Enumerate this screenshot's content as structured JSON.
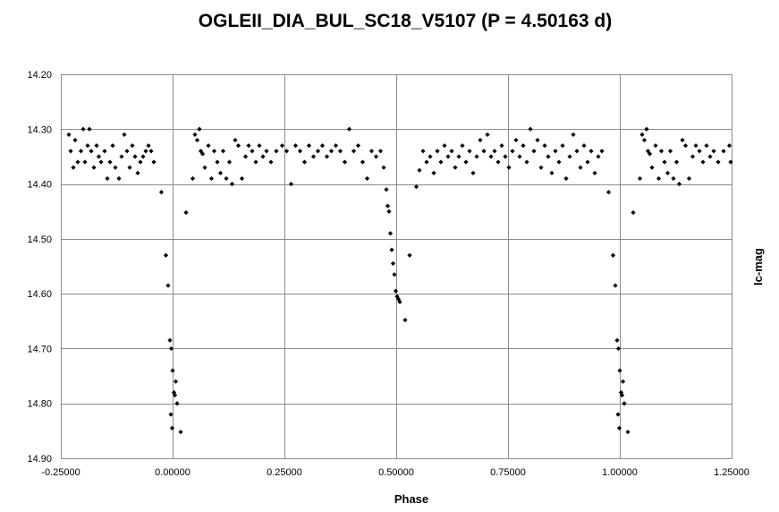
{
  "chart_data": {
    "type": "scatter",
    "title": "OGLEII_DIA_BUL_SC18_V5107 (P = 4.50163 d)",
    "xlabel": "Phase",
    "ylabel": "Ic-mag",
    "xlim": [
      -0.25,
      1.25
    ],
    "ylim": [
      14.9,
      14.2
    ],
    "y_inverted": true,
    "x_ticks": [
      "-0.25000",
      "0.00000",
      "0.25000",
      "0.50000",
      "0.75000",
      "1.00000",
      "1.25000"
    ],
    "x_tick_values": [
      -0.25,
      0.0,
      0.25,
      0.5,
      0.75,
      1.0,
      1.25
    ],
    "y_ticks": [
      "14.20",
      "14.30",
      "14.40",
      "14.50",
      "14.60",
      "14.70",
      "14.80",
      "14.90"
    ],
    "y_tick_values": [
      14.2,
      14.3,
      14.4,
      14.5,
      14.6,
      14.7,
      14.8,
      14.9
    ],
    "grid": true,
    "marker": "diamond",
    "color": "#000000",
    "series": [
      {
        "points": [
          [
            -0.232,
            14.31
          ],
          [
            -0.228,
            14.34
          ],
          [
            -0.222,
            14.37
          ],
          [
            -0.218,
            14.32
          ],
          [
            -0.212,
            14.36
          ],
          [
            -0.205,
            14.34
          ],
          [
            -0.2,
            14.3
          ],
          [
            -0.196,
            14.36
          ],
          [
            -0.19,
            14.33
          ],
          [
            -0.186,
            14.3
          ],
          [
            -0.182,
            14.34
          ],
          [
            -0.176,
            14.37
          ],
          [
            -0.17,
            14.33
          ],
          [
            -0.165,
            14.35
          ],
          [
            -0.16,
            14.36
          ],
          [
            -0.152,
            14.34
          ],
          [
            -0.146,
            14.39
          ],
          [
            -0.14,
            14.36
          ],
          [
            -0.134,
            14.33
          ],
          [
            -0.128,
            14.37
          ],
          [
            -0.12,
            14.39
          ],
          [
            -0.114,
            14.35
          ],
          [
            -0.108,
            14.31
          ],
          [
            -0.102,
            14.34
          ],
          [
            -0.096,
            14.37
          ],
          [
            -0.09,
            14.33
          ],
          [
            -0.084,
            14.35
          ],
          [
            -0.078,
            14.38
          ],
          [
            -0.072,
            14.36
          ],
          [
            -0.066,
            14.35
          ],
          [
            -0.06,
            14.34
          ],
          [
            -0.054,
            14.33
          ],
          [
            -0.048,
            14.34
          ],
          [
            -0.042,
            14.36
          ],
          [
            -0.025,
            14.415
          ],
          [
            -0.015,
            14.53
          ],
          [
            -0.01,
            14.585
          ],
          [
            -0.006,
            14.685
          ],
          [
            -0.003,
            14.7
          ],
          [
            0.0,
            14.74
          ],
          [
            0.003,
            14.78
          ],
          [
            0.005,
            14.785
          ],
          [
            0.007,
            14.76
          ],
          [
            -0.004,
            14.82
          ],
          [
            -0.001,
            14.845
          ],
          [
            0.01,
            14.8
          ],
          [
            0.018,
            14.852
          ],
          [
            0.03,
            14.452
          ],
          [
            0.045,
            14.39
          ],
          [
            0.05,
            14.31
          ],
          [
            0.055,
            14.32
          ],
          [
            0.06,
            14.3
          ],
          [
            0.063,
            14.34
          ],
          [
            0.067,
            14.345
          ],
          [
            0.072,
            14.37
          ],
          [
            0.08,
            14.33
          ],
          [
            0.087,
            14.39
          ],
          [
            0.093,
            14.34
          ],
          [
            0.1,
            14.36
          ],
          [
            0.107,
            14.38
          ],
          [
            0.113,
            14.34
          ],
          [
            0.12,
            14.39
          ],
          [
            0.127,
            14.36
          ],
          [
            0.133,
            14.4
          ],
          [
            0.14,
            14.32
          ],
          [
            0.147,
            14.33
          ],
          [
            0.155,
            14.39
          ],
          [
            0.163,
            14.35
          ],
          [
            0.17,
            14.33
          ],
          [
            0.178,
            14.34
          ],
          [
            0.186,
            14.36
          ],
          [
            0.194,
            14.33
          ],
          [
            0.202,
            14.35
          ],
          [
            0.21,
            14.34
          ],
          [
            0.22,
            14.36
          ],
          [
            0.232,
            14.34
          ],
          [
            0.245,
            14.33
          ],
          [
            0.255,
            14.34
          ],
          [
            0.265,
            14.4
          ],
          [
            0.275,
            14.33
          ],
          [
            0.285,
            14.34
          ],
          [
            0.295,
            14.36
          ],
          [
            0.305,
            14.33
          ],
          [
            0.315,
            14.35
          ],
          [
            0.325,
            14.34
          ],
          [
            0.335,
            14.33
          ],
          [
            0.345,
            14.35
          ],
          [
            0.355,
            14.34
          ],
          [
            0.365,
            14.33
          ],
          [
            0.375,
            14.34
          ],
          [
            0.385,
            14.36
          ],
          [
            0.395,
            14.3
          ],
          [
            0.405,
            14.34
          ],
          [
            0.415,
            14.33
          ],
          [
            0.425,
            14.36
          ],
          [
            0.435,
            14.39
          ],
          [
            0.445,
            14.34
          ],
          [
            0.455,
            14.35
          ],
          [
            0.465,
            14.34
          ],
          [
            0.472,
            14.37
          ],
          [
            0.478,
            14.41
          ],
          [
            0.481,
            14.44
          ],
          [
            0.484,
            14.45
          ],
          [
            0.487,
            14.49
          ],
          [
            0.49,
            14.52
          ],
          [
            0.493,
            14.545
          ],
          [
            0.496,
            14.565
          ],
          [
            0.499,
            14.595
          ],
          [
            0.502,
            14.605
          ],
          [
            0.505,
            14.61
          ],
          [
            0.508,
            14.615
          ],
          [
            0.52,
            14.648
          ],
          [
            0.53,
            14.53
          ],
          [
            0.545,
            14.405
          ],
          [
            0.552,
            14.375
          ],
          [
            0.56,
            14.34
          ],
          [
            0.568,
            14.36
          ],
          [
            0.576,
            14.35
          ],
          [
            0.584,
            14.38
          ],
          [
            0.592,
            14.34
          ],
          [
            0.6,
            14.36
          ],
          [
            0.608,
            14.33
          ],
          [
            0.616,
            14.35
          ],
          [
            0.624,
            14.34
          ],
          [
            0.632,
            14.37
          ],
          [
            0.64,
            14.35
          ],
          [
            0.648,
            14.33
          ],
          [
            0.656,
            14.36
          ],
          [
            0.664,
            14.34
          ],
          [
            0.672,
            14.38
          ],
          [
            0.68,
            14.35
          ],
          [
            0.688,
            14.32
          ],
          [
            0.696,
            14.34
          ],
          [
            0.704,
            14.31
          ],
          [
            0.712,
            14.35
          ],
          [
            0.72,
            14.34
          ],
          [
            0.728,
            14.36
          ],
          [
            0.736,
            14.33
          ],
          [
            0.744,
            14.35
          ],
          [
            0.752,
            14.37
          ],
          [
            0.76,
            14.34
          ],
          [
            0.768,
            14.32
          ],
          [
            0.776,
            14.35
          ],
          [
            0.784,
            14.33
          ],
          [
            0.792,
            14.36
          ],
          [
            0.8,
            14.3
          ],
          [
            0.808,
            14.34
          ],
          [
            0.816,
            14.32
          ],
          [
            0.824,
            14.37
          ],
          [
            0.832,
            14.33
          ],
          [
            0.84,
            14.35
          ],
          [
            0.848,
            14.38
          ],
          [
            0.856,
            14.34
          ],
          [
            0.864,
            14.36
          ],
          [
            0.872,
            14.33
          ],
          [
            0.88,
            14.39
          ],
          [
            0.888,
            14.35
          ],
          [
            0.896,
            14.31
          ],
          [
            0.904,
            14.34
          ],
          [
            0.912,
            14.37
          ],
          [
            0.92,
            14.33
          ],
          [
            0.928,
            14.36
          ],
          [
            0.936,
            14.34
          ],
          [
            0.944,
            14.38
          ],
          [
            0.952,
            14.35
          ],
          [
            0.96,
            14.34
          ],
          [
            0.975,
            14.415
          ],
          [
            0.985,
            14.53
          ],
          [
            0.99,
            14.585
          ],
          [
            0.994,
            14.685
          ],
          [
            0.997,
            14.7
          ],
          [
            1.0,
            14.74
          ],
          [
            1.003,
            14.78
          ],
          [
            1.005,
            14.785
          ],
          [
            1.007,
            14.76
          ],
          [
            0.996,
            14.82
          ],
          [
            0.999,
            14.845
          ],
          [
            1.01,
            14.8
          ],
          [
            1.018,
            14.852
          ],
          [
            1.03,
            14.452
          ],
          [
            1.045,
            14.39
          ],
          [
            1.05,
            14.31
          ],
          [
            1.055,
            14.32
          ],
          [
            1.06,
            14.3
          ],
          [
            1.063,
            14.34
          ],
          [
            1.067,
            14.345
          ],
          [
            1.072,
            14.37
          ],
          [
            1.08,
            14.33
          ],
          [
            1.087,
            14.39
          ],
          [
            1.093,
            14.34
          ],
          [
            1.1,
            14.36
          ],
          [
            1.107,
            14.38
          ],
          [
            1.113,
            14.34
          ],
          [
            1.12,
            14.39
          ],
          [
            1.127,
            14.36
          ],
          [
            1.133,
            14.4
          ],
          [
            1.14,
            14.32
          ],
          [
            1.147,
            14.33
          ],
          [
            1.155,
            14.39
          ],
          [
            1.163,
            14.35
          ],
          [
            1.17,
            14.33
          ],
          [
            1.178,
            14.34
          ],
          [
            1.186,
            14.36
          ],
          [
            1.194,
            14.33
          ],
          [
            1.202,
            14.35
          ],
          [
            1.21,
            14.34
          ],
          [
            1.22,
            14.36
          ],
          [
            1.232,
            14.34
          ],
          [
            1.245,
            14.33
          ],
          [
            1.248,
            14.36
          ]
        ]
      }
    ]
  }
}
